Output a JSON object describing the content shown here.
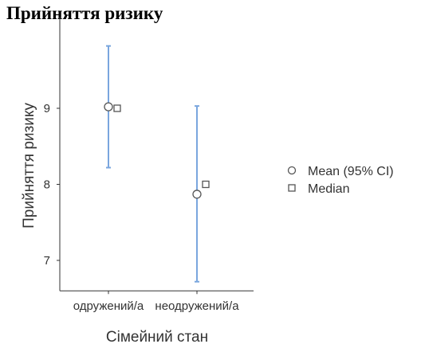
{
  "page": {
    "title": "Прийняття ризику"
  },
  "chart_data": {
    "type": "errorbar",
    "title": "",
    "xlabel": "Сімейний стан",
    "ylabel": "Прийняття ризику",
    "categories": [
      "одружений/а",
      "неодружений/а"
    ],
    "mean": [
      9.02,
      7.87
    ],
    "ci_lower": [
      8.22,
      6.72
    ],
    "ci_upper": [
      9.82,
      9.03
    ],
    "median": [
      9.0,
      8.0
    ],
    "ylim": [
      6.6,
      10.2
    ],
    "yticks": [
      7,
      8,
      9
    ],
    "grid": false,
    "legend_position": "right",
    "legend": {
      "mean_label": "Mean (95% CI)",
      "median_label": "Median"
    },
    "colors": {
      "ci_bar": "#7aa6de",
      "marker_stroke": "#555555",
      "axis": "#333333"
    }
  }
}
